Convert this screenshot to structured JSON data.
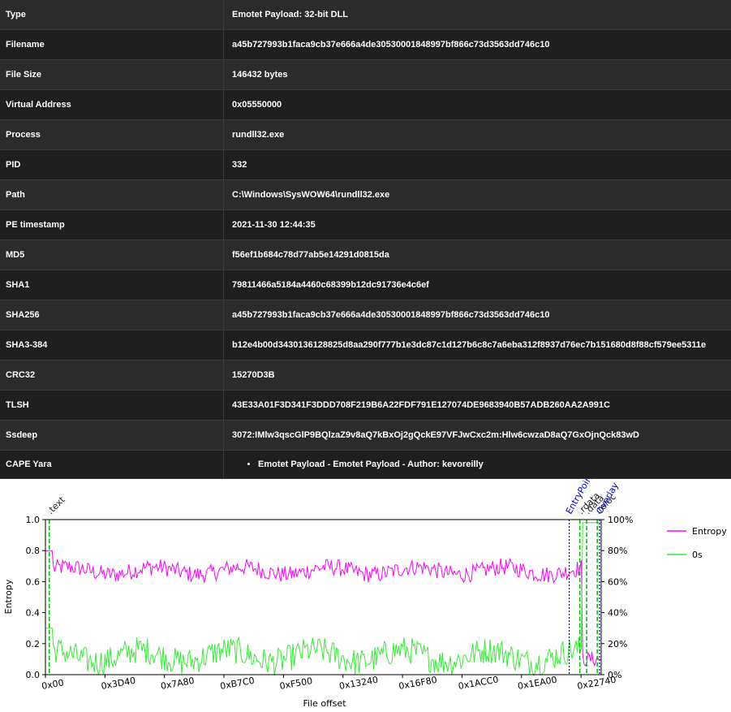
{
  "table": {
    "rows": [
      {
        "label": "Type",
        "value": "Emotet Payload: 32-bit DLL"
      },
      {
        "label": "Filename",
        "value": "a45b727993b1faca9cb37e666a4de30530001848997bf866c73d3563dd746c10"
      },
      {
        "label": "File Size",
        "value": "146432 bytes"
      },
      {
        "label": "Virtual Address",
        "value": "0x05550000"
      },
      {
        "label": "Process",
        "value": "rundll32.exe"
      },
      {
        "label": "PID",
        "value": "332"
      },
      {
        "label": "Path",
        "value": "C:\\Windows\\SysWOW64\\rundll32.exe"
      },
      {
        "label": "PE timestamp",
        "value": "2021-11-30 12:44:35"
      },
      {
        "label": "MD5",
        "value": "f56ef1b684c78d77ab5e14291d0815da"
      },
      {
        "label": "SHA1",
        "value": "79811466a5184a4460c68399b12dc91736e4c6ef"
      },
      {
        "label": "SHA256",
        "value": "a45b727993b1faca9cb37e666a4de30530001848997bf866c73d3563dd746c10"
      },
      {
        "label": "SHA3-384",
        "value": "b12e4b00d3430136128825d8aa290f777b1e3dc87c1d127b6c8c7a6eba312f8937d76ec7b151680d8f88cf579ee5311e"
      },
      {
        "label": "CRC32",
        "value": "15270D3B"
      },
      {
        "label": "TLSH",
        "value": "43E33A01F3D341F3DDD708F219B6A22FDF791E127074DE9683940B57ADB260AA2A991C"
      },
      {
        "label": "Ssdeep",
        "value": "3072:IMlw3qscGlP9BQlzaZ9v8aQ7kBxOj2gQckE97VFJwCxc2m:Hlw6cwzaD8aQ7GxOjnQck83wD"
      }
    ],
    "yara_label": "CAPE Yara",
    "yara_items": [
      "Emotet Payload - Emotet Payload - Author: kevoreilly"
    ]
  },
  "chart_data": {
    "type": "line",
    "xlabel": "File offset",
    "ylabel": "Entropy",
    "ylim": [
      0,
      1.0
    ],
    "y2lim": [
      0,
      100
    ],
    "xlim": [
      0,
      146432
    ],
    "x_ticks": [
      "0x00",
      "0x3D40",
      "0x7A80",
      "0xB7C0",
      "0xF500",
      "0x13240",
      "0x16F80",
      "0x1ACC0",
      "0x1EA00",
      "0x22740"
    ],
    "y_ticks": [
      "0.0",
      "0.2",
      "0.4",
      "0.6",
      "0.8",
      "1.0"
    ],
    "y2_ticks": [
      "0%",
      "20%",
      "40%",
      "60%",
      "80%",
      "100%"
    ],
    "legend_position": "right",
    "series": [
      {
        "name": "Entropy",
        "color": "#ff00ff",
        "axis": "left",
        "pattern": {
          "start": 0.8,
          "mean": 0.67,
          "spread": 0.05,
          "end": 0.05
        }
      },
      {
        "name": "0s",
        "color": "#33ee33",
        "axis": "right",
        "pattern": {
          "start": 0.3,
          "mean": 0.12,
          "spread": 0.08,
          "end": 0.98
        }
      }
    ],
    "section_markers": [
      {
        "label": ".text",
        "offset": 1024,
        "color": "#00bb00"
      },
      {
        "label": ".rdata",
        "offset": 140800,
        "color": "#00bb00"
      },
      {
        "label": ".data",
        "offset": 142600,
        "color": "#00bb00"
      },
      {
        "label": ".reloc",
        "offset": 145400,
        "color": "#00bb00"
      }
    ],
    "entry_point": {
      "label": "EntryPoint",
      "offset": 138000,
      "color": "#0000cc"
    },
    "overlay": {
      "label": "Overlay",
      "offset": 146432,
      "color": "#0000cc"
    }
  }
}
